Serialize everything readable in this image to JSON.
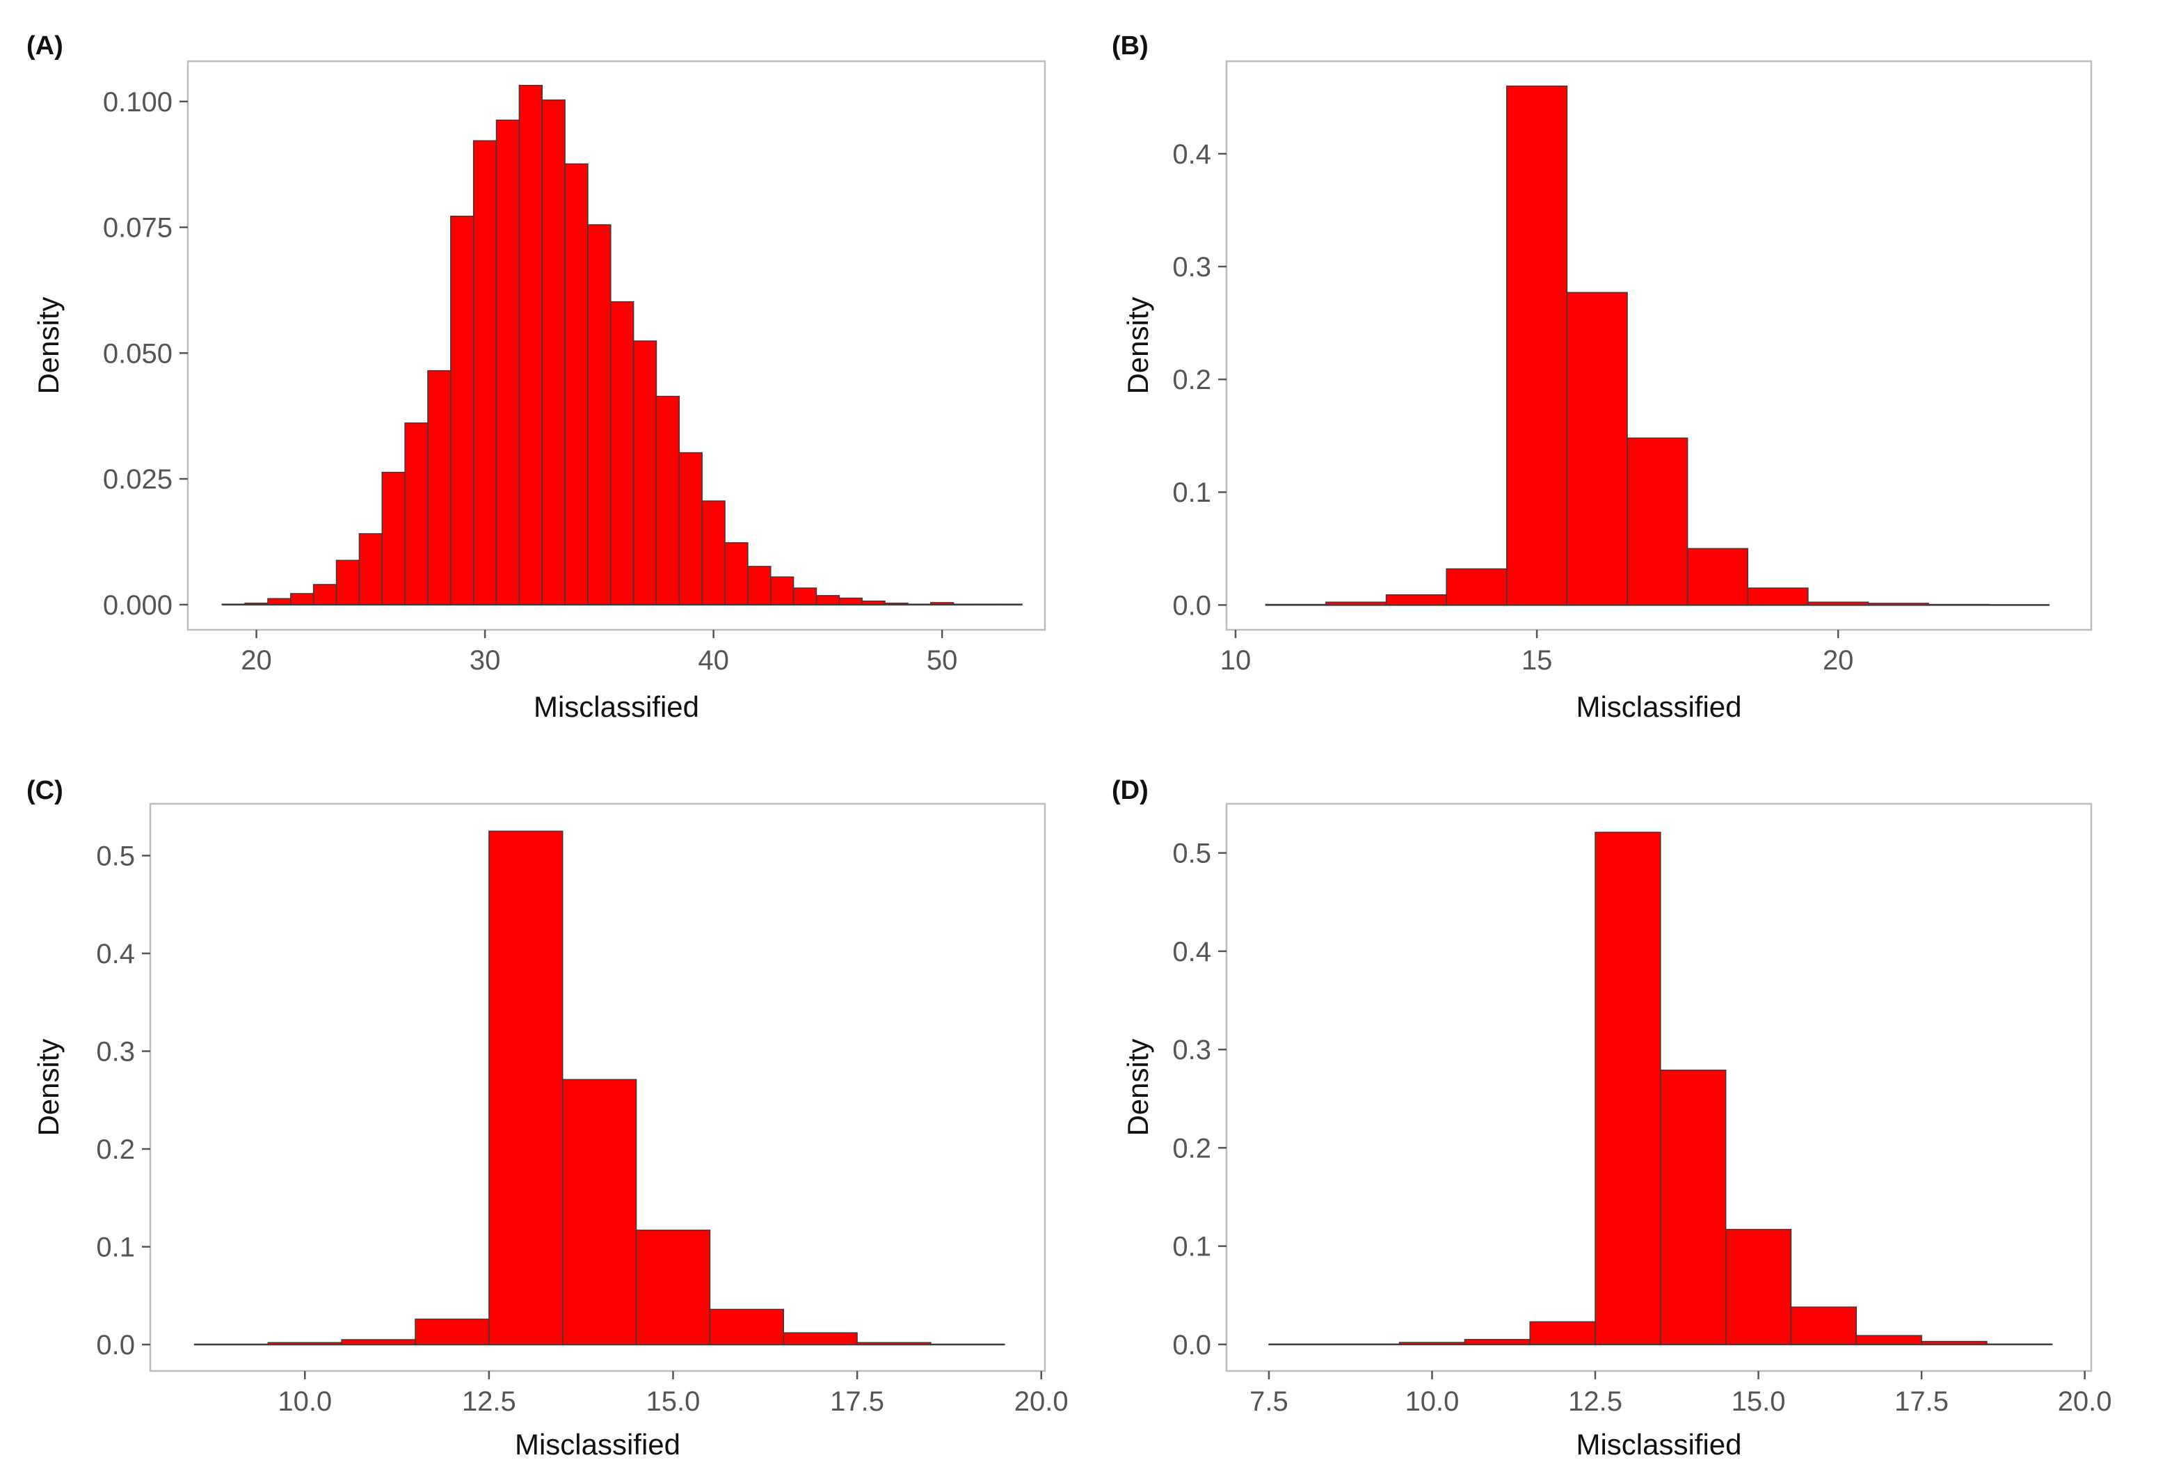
{
  "figure": {
    "background": "#ffffff",
    "bar_color": "#ff0000",
    "bar_edge_color": "#3a3a3a"
  },
  "chart_data": [
    {
      "panel": "(A)",
      "type": "bar",
      "subtype": "histogram",
      "xlabel": "Misclassified",
      "ylabel": "Density",
      "xlim": [
        17,
        54.5
      ],
      "ylim": [
        -0.005,
        0.108
      ],
      "xticks": [
        20,
        30,
        40,
        50
      ],
      "xtick_labels": [
        "20",
        "30",
        "40",
        "50"
      ],
      "yticks": [
        0,
        0.025,
        0.05,
        0.075,
        0.1
      ],
      "ytick_labels": [
        "0.000",
        "0.025",
        "0.050",
        "0.075",
        "0.100"
      ],
      "bin_width": 1,
      "bin_centers": [
        19,
        20,
        21,
        22,
        23,
        24,
        25,
        26,
        27,
        28,
        29,
        30,
        31,
        32,
        33,
        34,
        35,
        36,
        37,
        38,
        39,
        40,
        41,
        42,
        43,
        44,
        45,
        46,
        47,
        48,
        49,
        50,
        51,
        52,
        53
      ],
      "values": [
        0.0001,
        0.0003,
        0.0012,
        0.0022,
        0.004,
        0.0088,
        0.0141,
        0.0263,
        0.0361,
        0.0465,
        0.0772,
        0.0922,
        0.0963,
        0.1032,
        0.1003,
        0.0876,
        0.0755,
        0.0602,
        0.0524,
        0.0414,
        0.0302,
        0.0206,
        0.0123,
        0.0076,
        0.0055,
        0.0033,
        0.0018,
        0.0013,
        0.0007,
        0.0003,
        0.0001,
        0.0004,
        0.0001,
        0.0001,
        0.0001
      ]
    },
    {
      "panel": "(B)",
      "type": "bar",
      "subtype": "histogram",
      "xlabel": "Misclassified",
      "ylabel": "Density",
      "xlim": [
        9.85,
        24.2
      ],
      "ylim": [
        -0.022,
        0.482
      ],
      "xticks": [
        10,
        15,
        20
      ],
      "xtick_labels": [
        "10",
        "15",
        "20"
      ],
      "yticks": [
        0,
        0.1,
        0.2,
        0.3,
        0.4
      ],
      "ytick_labels": [
        "0.0",
        "0.1",
        "0.2",
        "0.3",
        "0.4"
      ],
      "bin_width": 1,
      "bin_centers": [
        11,
        12,
        13,
        14,
        15,
        16,
        17,
        18,
        19,
        20,
        21,
        22,
        23
      ],
      "values": [
        0.0005,
        0.0025,
        0.009,
        0.032,
        0.46,
        0.277,
        0.148,
        0.05,
        0.015,
        0.0025,
        0.0015,
        0.0005,
        0.0002
      ]
    },
    {
      "panel": "(C)",
      "type": "bar",
      "subtype": "histogram",
      "xlabel": "Misclassified",
      "ylabel": "Density",
      "xlim": [
        7.9,
        20.05
      ],
      "ylim": [
        -0.027,
        0.553
      ],
      "xticks": [
        10,
        12.5,
        15,
        17.5,
        20
      ],
      "xtick_labels": [
        "10.0",
        "12.5",
        "15.0",
        "17.5",
        "20.0"
      ],
      "yticks": [
        0,
        0.1,
        0.2,
        0.3,
        0.4,
        0.5
      ],
      "ytick_labels": [
        "0.0",
        "0.1",
        "0.2",
        "0.3",
        "0.4",
        "0.5"
      ],
      "bin_width": 1,
      "bin_centers": [
        9,
        10,
        11,
        12,
        13,
        14,
        15,
        16,
        17,
        18,
        19
      ],
      "values": [
        0.0003,
        0.002,
        0.005,
        0.026,
        0.525,
        0.271,
        0.117,
        0.036,
        0.012,
        0.002,
        0.0003
      ]
    },
    {
      "panel": "(D)",
      "type": "bar",
      "subtype": "histogram",
      "xlabel": "Misclassified",
      "ylabel": "Density",
      "xlim": [
        6.85,
        20.1
      ],
      "ylim": [
        -0.027,
        0.55
      ],
      "xticks": [
        7.5,
        10,
        12.5,
        15,
        17.5,
        20
      ],
      "xtick_labels": [
        "7.5",
        "10.0",
        "12.5",
        "15.0",
        "17.5",
        "20.0"
      ],
      "yticks": [
        0,
        0.1,
        0.2,
        0.3,
        0.4,
        0.5
      ],
      "ytick_labels": [
        "0.0",
        "0.1",
        "0.2",
        "0.3",
        "0.4",
        "0.5"
      ],
      "bin_width": 1,
      "bin_centers": [
        8,
        9,
        10,
        11,
        12,
        13,
        14,
        15,
        16,
        17,
        18,
        19
      ],
      "values": [
        0.0002,
        0.0003,
        0.002,
        0.005,
        0.023,
        0.521,
        0.279,
        0.117,
        0.038,
        0.009,
        0.003,
        0.0003
      ]
    }
  ]
}
